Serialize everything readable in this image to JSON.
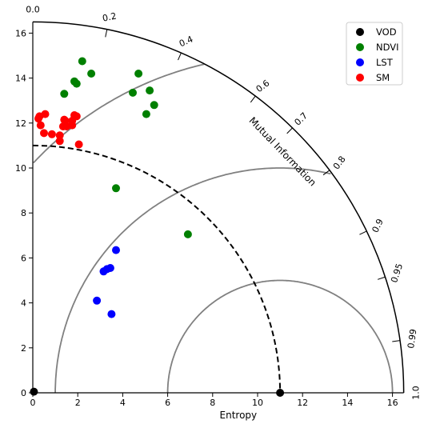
{
  "chart_data": {
    "type": "scatter",
    "subtype": "polar-diagram",
    "xlabel": "Entropy",
    "arc_label": "Mutual Information",
    "xlim": [
      0,
      16.5
    ],
    "ylim": [
      0,
      16.5
    ],
    "x_ticks": [
      "0",
      "2",
      "4",
      "6",
      "8",
      "10",
      "12",
      "14",
      "16"
    ],
    "y_ticks": [
      "0",
      "2",
      "4",
      "6",
      "8",
      "10",
      "12",
      "14",
      "16"
    ],
    "arc_ticks": [
      {
        "label": "0.0",
        "value": 0.0
      },
      {
        "label": "0.2",
        "value": 0.2
      },
      {
        "label": "0.4",
        "value": 0.4
      },
      {
        "label": "0.6",
        "value": 0.6
      },
      {
        "label": "0.7",
        "value": 0.7
      },
      {
        "label": "0.8",
        "value": 0.8
      },
      {
        "label": "0.9",
        "value": 0.9
      },
      {
        "label": "0.95",
        "value": 0.95
      },
      {
        "label": "0.99",
        "value": 0.99
      },
      {
        "label": "1.0",
        "value": 1.0
      }
    ],
    "reference_radius": 11.0,
    "outer_radius": 16.5,
    "inner_arcs": [
      {
        "center": 11.0,
        "radius": 5.0
      },
      {
        "center": 11.0,
        "radius": 10.0
      },
      {
        "center": 11.0,
        "radius": 15.0
      }
    ],
    "legend_position": "top-right",
    "series": [
      {
        "name": "VOD",
        "color": "#000000",
        "points": [
          [
            11.0,
            0.0
          ],
          [
            0.05,
            0.05
          ]
        ]
      },
      {
        "name": "NDVI",
        "color": "#008000",
        "points": [
          [
            2.2,
            14.75
          ],
          [
            2.6,
            14.2
          ],
          [
            1.85,
            13.85
          ],
          [
            1.95,
            13.75
          ],
          [
            1.4,
            13.3
          ],
          [
            4.7,
            14.2
          ],
          [
            4.45,
            13.35
          ],
          [
            5.2,
            13.45
          ],
          [
            5.4,
            12.8
          ],
          [
            5.05,
            12.4
          ],
          [
            3.7,
            9.1
          ],
          [
            6.9,
            7.05
          ]
        ]
      },
      {
        "name": "LST",
        "color": "#0000ff",
        "points": [
          [
            3.7,
            6.35
          ],
          [
            3.45,
            5.55
          ],
          [
            3.3,
            5.5
          ],
          [
            3.15,
            5.4
          ],
          [
            2.85,
            4.1
          ],
          [
            3.5,
            3.5
          ]
        ]
      },
      {
        "name": "SM",
        "color": "#ff0000",
        "points": [
          [
            0.3,
            12.3
          ],
          [
            0.25,
            12.2
          ],
          [
            0.35,
            11.9
          ],
          [
            0.55,
            12.4
          ],
          [
            0.5,
            11.55
          ],
          [
            0.85,
            11.5
          ],
          [
            1.2,
            11.45
          ],
          [
            1.2,
            11.2
          ],
          [
            1.4,
            12.15
          ],
          [
            1.45,
            12.1
          ],
          [
            1.5,
            11.85
          ],
          [
            1.35,
            11.85
          ],
          [
            1.75,
            12.1
          ],
          [
            1.85,
            12.35
          ],
          [
            1.95,
            12.3
          ],
          [
            1.75,
            11.9
          ],
          [
            2.05,
            11.05
          ]
        ]
      }
    ]
  }
}
